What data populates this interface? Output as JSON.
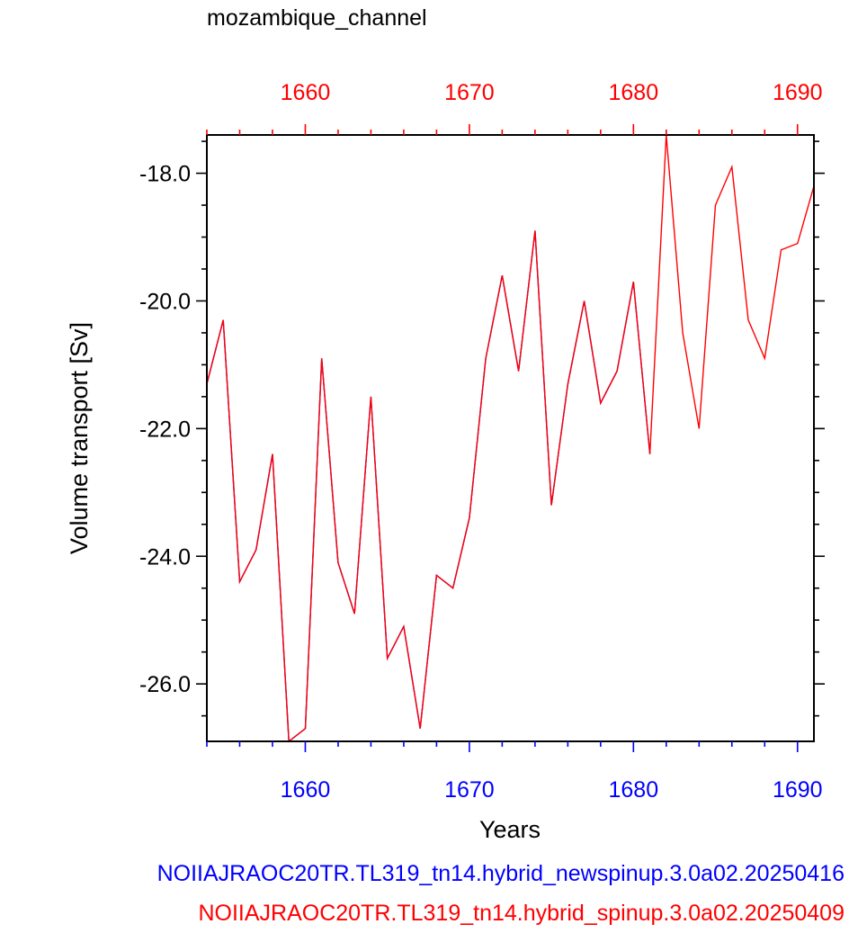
{
  "chart_data": {
    "type": "line",
    "title": "mozambique_channel",
    "xlabel": "Years",
    "ylabel": "Volume transport [Sv]",
    "xlim": [
      1654,
      1691
    ],
    "ylim": [
      -26.9,
      -17.4
    ],
    "x_ticks": [
      1660,
      1670,
      1680,
      1690
    ],
    "x_tick_labels": [
      "1660",
      "1670",
      "1680",
      "1690"
    ],
    "y_ticks": [
      -26,
      -24,
      -22,
      -20,
      -18
    ],
    "y_tick_labels": [
      "-26.0",
      "-24.0",
      "-22.0",
      "-20.0",
      "-18.0"
    ],
    "grid": false,
    "bottom_axis_color": "#0000ff",
    "top_axis_color": "#ff0000",
    "series": [
      {
        "name": "NOIIAJRAOC20TR.TL319_tn14.hybrid_newspinup.3.0a02.20250416",
        "color": "#0000ff",
        "x": [
          1654,
          1655,
          1656,
          1657,
          1658,
          1659,
          1660,
          1661,
          1662,
          1663,
          1664,
          1665,
          1666,
          1667,
          1668,
          1669,
          1670,
          1671,
          1672,
          1673,
          1674,
          1675,
          1676,
          1677,
          1678,
          1679,
          1680,
          1681
        ],
        "values": [
          -21.3,
          -20.3,
          -24.4,
          -23.9,
          -22.4,
          -26.9,
          -26.7,
          -20.9,
          -24.1,
          -24.9,
          -21.5,
          -25.6,
          -25.1,
          -26.7,
          -24.3,
          -24.5,
          -23.4,
          -20.9,
          -19.6,
          -21.1,
          -18.9,
          -23.2,
          -21.3,
          -20.0,
          -21.6,
          -21.1,
          -19.7,
          -22.4
        ]
      },
      {
        "name": "NOIIAJRAOC20TR.TL319_tn14.hybrid_spinup.3.0a02.20250409",
        "color": "#ff0000",
        "x": [
          1654,
          1655,
          1656,
          1657,
          1658,
          1659,
          1660,
          1661,
          1662,
          1663,
          1664,
          1665,
          1666,
          1667,
          1668,
          1669,
          1670,
          1671,
          1672,
          1673,
          1674,
          1675,
          1676,
          1677,
          1678,
          1679,
          1680,
          1681,
          1682,
          1683,
          1684,
          1685,
          1686,
          1687,
          1688,
          1689,
          1690,
          1691
        ],
        "values": [
          -21.3,
          -20.3,
          -24.4,
          -23.9,
          -22.4,
          -26.9,
          -26.7,
          -20.9,
          -24.1,
          -24.9,
          -21.5,
          -25.6,
          -25.1,
          -26.7,
          -24.3,
          -24.5,
          -23.4,
          -20.9,
          -19.6,
          -21.1,
          -18.9,
          -23.2,
          -21.3,
          -20.0,
          -21.6,
          -21.1,
          -19.7,
          -22.4,
          -17.4,
          -20.5,
          -22.0,
          -18.5,
          -17.9,
          -20.3,
          -20.9,
          -19.2,
          -19.1,
          -18.2
        ]
      }
    ]
  }
}
